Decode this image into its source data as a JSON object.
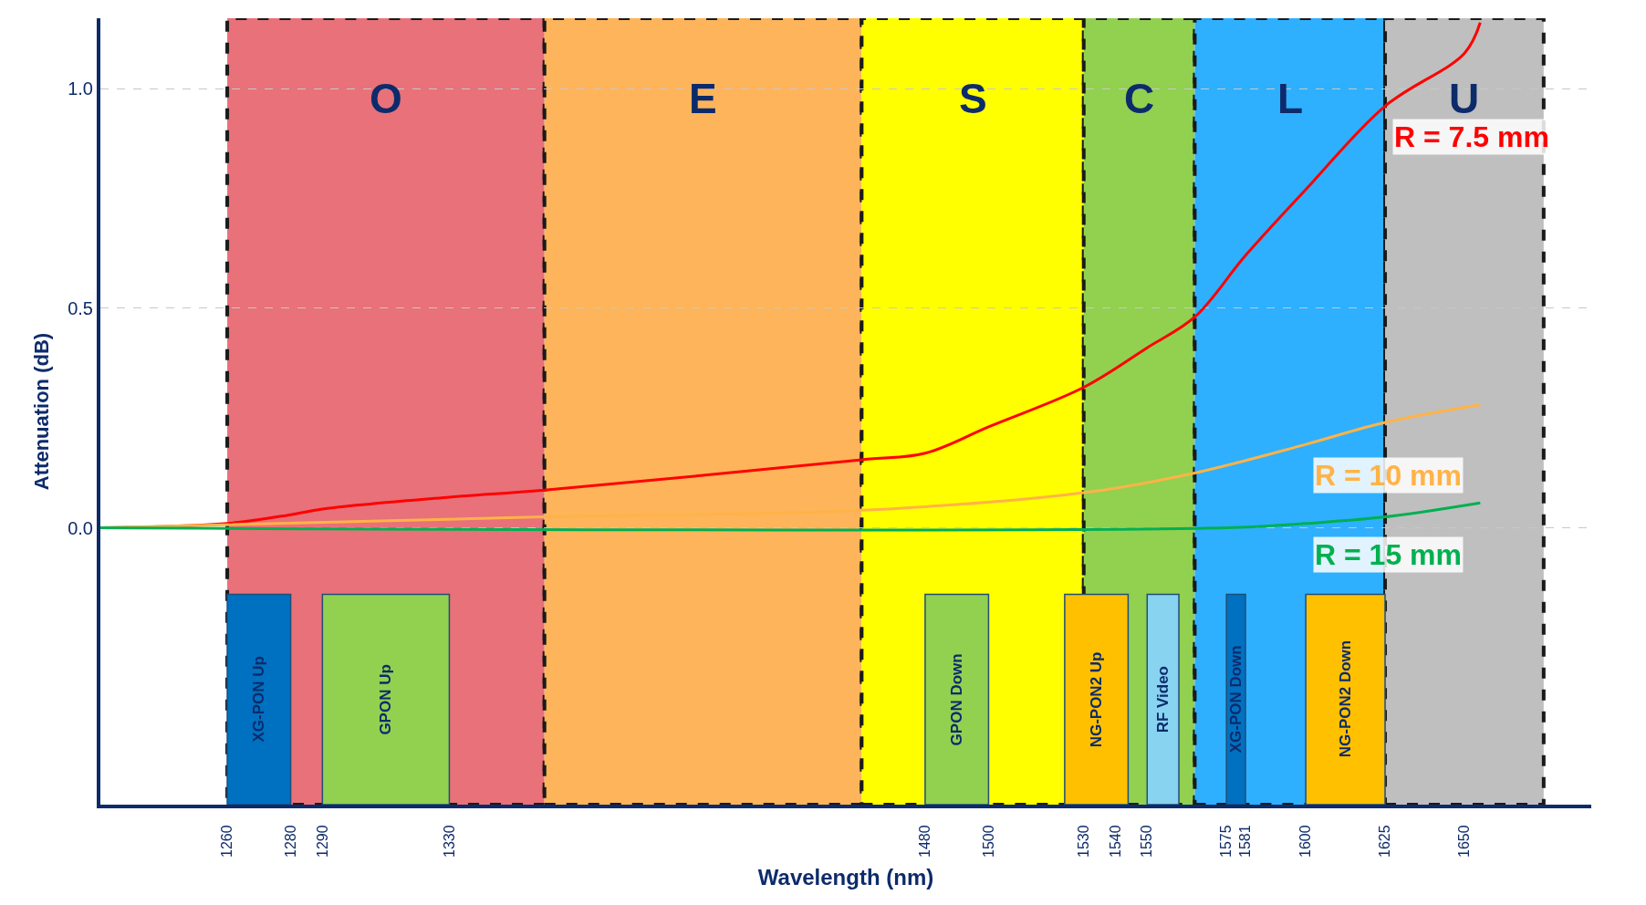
{
  "chart_data": {
    "type": "line",
    "xlabel": "Wavelength (nm)",
    "ylabel": "Attenuation (dB)",
    "xlim": [
      1220,
      1690
    ],
    "ylim": [
      -0.63,
      1.16
    ],
    "xticks": [
      1260,
      1280,
      1290,
      1330,
      1480,
      1500,
      1530,
      1540,
      1550,
      1575,
      1581,
      1600,
      1625,
      1650
    ],
    "yticks": [
      {
        "value": 0,
        "label": "0.0"
      },
      {
        "value": 0.5,
        "label": "0.5"
      },
      {
        "value": 1,
        "label": "1.0"
      }
    ],
    "grid": "y",
    "legend": false,
    "marker": "none",
    "line_style": "solid",
    "series": [
      {
        "name": "R = 7.5 mm",
        "color": "#ff0000",
        "x": [
          1220,
          1260,
          1280,
          1290,
          1330,
          1360,
          1460,
          1480,
          1500,
          1530,
          1550,
          1565,
          1581,
          1600,
          1625,
          1650,
          1655
        ],
        "values": [
          0,
          0.01,
          0.03,
          0.043,
          0.07,
          0.086,
          0.155,
          0.17,
          0.23,
          0.32,
          0.41,
          0.48,
          0.62,
          0.77,
          0.96,
          1.08,
          1.15
        ]
      },
      {
        "name": "R = 10 mm",
        "color": "#ffb347",
        "x": [
          1220,
          1360,
          1460,
          1530,
          1565,
          1600,
          1625,
          1655
        ],
        "values": [
          0,
          0.025,
          0.04,
          0.08,
          0.125,
          0.19,
          0.24,
          0.28
        ]
      },
      {
        "name": "R = 15 mm",
        "color": "#00b050",
        "x": [
          1220,
          1575,
          1600,
          1625,
          1655
        ],
        "values": [
          0,
          0,
          0.01,
          0.025,
          0.057
        ]
      }
    ],
    "bands": [
      {
        "axis": "x",
        "from": 1260,
        "to": 1360,
        "label": "O",
        "color": "#e8717a"
      },
      {
        "axis": "x",
        "from": 1360,
        "to": 1460,
        "label": "E",
        "color": "#fdb45a"
      },
      {
        "axis": "x",
        "from": 1460,
        "to": 1530,
        "label": "S",
        "color": "#ffff00"
      },
      {
        "axis": "x",
        "from": 1530,
        "to": 1565,
        "label": "C",
        "color": "#92d050"
      },
      {
        "axis": "x",
        "from": 1565,
        "to": 1625,
        "label": "L",
        "color": "#2eb0ff"
      },
      {
        "axis": "x",
        "from": 1625,
        "to": 1675,
        "label": "U",
        "color": "#bfbfbf"
      },
      {
        "axis": "x",
        "from": 1260,
        "to": 1280,
        "label": "XG-PON Up",
        "color": "#0070c0"
      },
      {
        "axis": "x",
        "from": 1290,
        "to": 1330,
        "label": "GPON Up",
        "color": "#92d050"
      },
      {
        "axis": "x",
        "from": 1480,
        "to": 1500,
        "label": "GPON Down",
        "color": "#92d050"
      },
      {
        "axis": "x",
        "from": 1524,
        "to": 1544,
        "label": "NG-PON2 Up",
        "color": "#ffc000"
      },
      {
        "axis": "x",
        "from": 1550,
        "to": 1560,
        "label": "RF Video",
        "color": "#87d3f0"
      },
      {
        "axis": "x",
        "from": 1575,
        "to": 1581,
        "label": "XG-PON Down",
        "color": "#0070c0"
      },
      {
        "axis": "x",
        "from": 1600,
        "to": 1625,
        "label": "NG-PON2 Down",
        "color": "#ffc000"
      }
    ]
  }
}
